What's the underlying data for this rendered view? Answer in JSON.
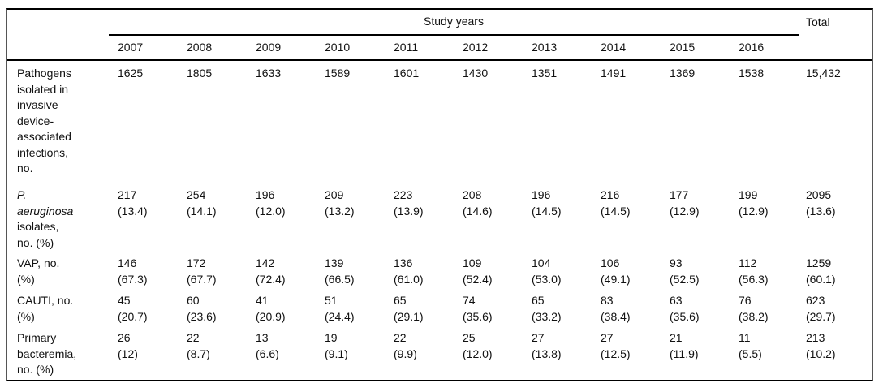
{
  "table": {
    "group_label": "Study years",
    "total_label": "Total",
    "years": [
      "2007",
      "2008",
      "2009",
      "2010",
      "2011",
      "2012",
      "2013",
      "2014",
      "2015",
      "2016"
    ],
    "rows": [
      {
        "label_italic": "",
        "label": "Pathogens\nisolated in\ninvasive\ndevice-\nassociated\ninfections,\nno.",
        "values": [
          "1625",
          "1805",
          "1633",
          "1589",
          "1601",
          "1430",
          "1351",
          "1491",
          "1369",
          "1538"
        ],
        "total": "15,432"
      },
      {
        "label_italic": "P.\naeruginosa",
        "label": "\nisolates,\nno. (%)",
        "values": [
          "217\n(13.4)",
          "254\n(14.1)",
          "196\n(12.0)",
          "209\n(13.2)",
          "223\n(13.9)",
          "208\n(14.6)",
          "196\n(14.5)",
          "216\n(14.5)",
          "177\n(12.9)",
          "199\n(12.9)"
        ],
        "total": "2095\n(13.6)"
      },
      {
        "label_italic": "",
        "label": "VAP, no.\n(%)",
        "values": [
          "146\n(67.3)",
          "172\n(67.7)",
          "142\n(72.4)",
          "139\n(66.5)",
          "136\n(61.0)",
          "109\n(52.4)",
          "104\n(53.0)",
          "106\n(49.1)",
          "93\n(52.5)",
          "112\n(56.3)"
        ],
        "total": "1259\n(60.1)"
      },
      {
        "label_italic": "",
        "label": "CAUTI, no.\n(%)",
        "values": [
          "45\n(20.7)",
          "60\n(23.6)",
          "41\n(20.9)",
          "51\n(24.4)",
          "65\n(29.1)",
          "74\n(35.6)",
          "65\n(33.2)",
          "83\n(38.4)",
          "63\n(35.6)",
          "76\n(38.2)"
        ],
        "total": "623\n(29.7)"
      },
      {
        "label_italic": "",
        "label": "Primary\nbacteremia,\nno. (%)",
        "values": [
          "26\n(12)",
          "22\n(8.7)",
          "13\n(6.6)",
          "19\n(9.1)",
          "22\n(9.9)",
          "25\n(12.0)",
          "27\n(13.8)",
          "27\n(12.5)",
          "21\n(11.9)",
          "11\n(5.5)"
        ],
        "total": "213\n(10.2)"
      }
    ]
  }
}
